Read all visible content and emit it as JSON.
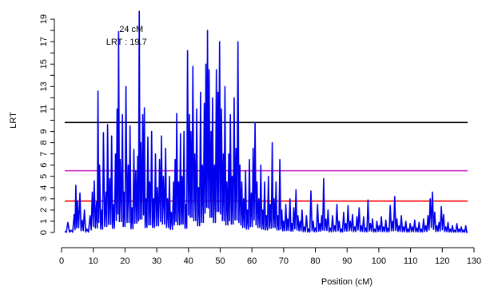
{
  "chart_data": {
    "type": "line",
    "xlabel": "Position (cM)",
    "ylabel": "LRT",
    "xlim": [
      0,
      130
    ],
    "ylim": [
      0,
      20
    ],
    "x_ticks": [
      "0",
      "10",
      "20",
      "30",
      "40",
      "50",
      "60",
      "70",
      "80",
      "90",
      "100",
      "110",
      "120",
      "130"
    ],
    "y_ticks": [
      "0",
      "1",
      "2",
      "3",
      "4",
      "5",
      "6",
      "7",
      "8",
      "9",
      "10",
      "11",
      "12",
      "13",
      "14",
      "15",
      "16",
      "17",
      "18",
      "19"
    ],
    "y_tick_labels_shown": [
      "0",
      "1",
      "2",
      "3",
      "4",
      "5",
      "6",
      "7",
      "8",
      "9",
      "11",
      "13",
      "15",
      "17",
      "19"
    ],
    "annotation": {
      "line1": "24 cM",
      "line2": "LRT : 19.7",
      "x": 24,
      "y": 19.7
    },
    "thresholds": [
      {
        "value": 9.8,
        "color": "#000000"
      },
      {
        "value": 5.5,
        "color": "#cc33cc"
      },
      {
        "value": 2.8,
        "color": "#ff0000"
      }
    ],
    "series": [
      {
        "color": "#0000ee",
        "x_start": 1,
        "x_end": 128,
        "peaks": [
          [
            1,
            0.1
          ],
          [
            2,
            0.9
          ],
          [
            3,
            0.2
          ],
          [
            4,
            1.6
          ],
          [
            4.5,
            4.2
          ],
          [
            5,
            2.8
          ],
          [
            5.8,
            3.5
          ],
          [
            6.5,
            1.1
          ],
          [
            7.2,
            2.0
          ],
          [
            8,
            0.3
          ],
          [
            9,
            1.5
          ],
          [
            9.7,
            3.6
          ],
          [
            10.3,
            4.6
          ],
          [
            11,
            2.7
          ],
          [
            11.5,
            12.6
          ],
          [
            12,
            6.0
          ],
          [
            12.7,
            2.0
          ],
          [
            13.2,
            8.9
          ],
          [
            14,
            3.6
          ],
          [
            14.5,
            9.6
          ],
          [
            15.2,
            4.8
          ],
          [
            15.8,
            8.6
          ],
          [
            16.3,
            2.5
          ],
          [
            17,
            7.0
          ],
          [
            17.5,
            11.0
          ],
          [
            18,
            17.9
          ],
          [
            18.5,
            6.5
          ],
          [
            19.2,
            10.5
          ],
          [
            19.7,
            3.6
          ],
          [
            20.3,
            13.0
          ],
          [
            21,
            6.0
          ],
          [
            21.6,
            9.5
          ],
          [
            22.2,
            2.2
          ],
          [
            22.8,
            7.4
          ],
          [
            23.4,
            5.5
          ],
          [
            24,
            6.8
          ],
          [
            24.5,
            19.7
          ],
          [
            25,
            8.0
          ],
          [
            25.6,
            10.5
          ],
          [
            26.1,
            11.1
          ],
          [
            26.6,
            3.0
          ],
          [
            27.2,
            8.5
          ],
          [
            27.8,
            4.5
          ],
          [
            28.4,
            9.0
          ],
          [
            29,
            3.0
          ],
          [
            29.6,
            7.0
          ],
          [
            30.2,
            4.0
          ],
          [
            30.9,
            6.5
          ],
          [
            31.5,
            8.6
          ],
          [
            32.1,
            5.0
          ],
          [
            32.8,
            7.5
          ],
          [
            33.4,
            3.0
          ],
          [
            34,
            5.0
          ],
          [
            34.6,
            1.8
          ],
          [
            35.3,
            4.5
          ],
          [
            35.8,
            6.5
          ],
          [
            36.3,
            10.6
          ],
          [
            36.9,
            4.5
          ],
          [
            37.5,
            8.8
          ],
          [
            38,
            5.0
          ],
          [
            38.6,
            9.0
          ],
          [
            39.2,
            2.5
          ],
          [
            39.7,
            16.2
          ],
          [
            40.3,
            10.5
          ],
          [
            40.8,
            9.0
          ],
          [
            41.4,
            14.8
          ],
          [
            42,
            7.0
          ],
          [
            42.6,
            11.0
          ],
          [
            43.2,
            4.0
          ],
          [
            43.8,
            12.5
          ],
          [
            44.4,
            6.0
          ],
          [
            45,
            11.5
          ],
          [
            45.5,
            15.0
          ],
          [
            46,
            18.0
          ],
          [
            46.5,
            14.5
          ],
          [
            47.1,
            9.0
          ],
          [
            47.6,
            12.0
          ],
          [
            48.2,
            6.0
          ],
          [
            48.8,
            14.5
          ],
          [
            49.3,
            12.5
          ],
          [
            49.8,
            17.0
          ],
          [
            50.4,
            11.0
          ],
          [
            51,
            7.0
          ],
          [
            51.5,
            13.0
          ],
          [
            52.1,
            4.5
          ],
          [
            52.7,
            7.0
          ],
          [
            53.2,
            10.5
          ],
          [
            53.8,
            5.0
          ],
          [
            54.4,
            12.0
          ],
          [
            55,
            7.5
          ],
          [
            55.6,
            17.0
          ],
          [
            56.2,
            6.0
          ],
          [
            56.8,
            4.5
          ],
          [
            57.4,
            3.0
          ],
          [
            58,
            5.5
          ],
          [
            58.6,
            2.0
          ],
          [
            59.2,
            6.5
          ],
          [
            59.8,
            3.5
          ],
          [
            60.4,
            7.5
          ],
          [
            61,
            9.8
          ],
          [
            61.6,
            4.5
          ],
          [
            62.2,
            3.0
          ],
          [
            62.8,
            6.0
          ],
          [
            63.4,
            2.0
          ],
          [
            64,
            4.5
          ],
          [
            64.6,
            1.5
          ],
          [
            65.2,
            5.0
          ],
          [
            65.8,
            2.5
          ],
          [
            66.4,
            8.0
          ],
          [
            67,
            3.0
          ],
          [
            67.6,
            4.5
          ],
          [
            68.2,
            1.5
          ],
          [
            68.8,
            6.5
          ],
          [
            69.4,
            2.0
          ],
          [
            70,
            1.0
          ],
          [
            70.7,
            2.5
          ],
          [
            71.3,
            1.2
          ],
          [
            72,
            3.0
          ],
          [
            72.6,
            0.8
          ],
          [
            73.2,
            2.2
          ],
          [
            73.9,
            3.8
          ],
          [
            74.5,
            1.5
          ],
          [
            75.2,
            1.0
          ],
          [
            75.8,
            2.0
          ],
          [
            76.5,
            0.5
          ],
          [
            77.2,
            1.5
          ],
          [
            77.9,
            0.3
          ],
          [
            78.6,
            3.7
          ],
          [
            79.3,
            1.0
          ],
          [
            80,
            0.4
          ],
          [
            80.7,
            2.5
          ],
          [
            81.4,
            0.8
          ],
          [
            82,
            1.5
          ],
          [
            82.6,
            4.8
          ],
          [
            83.3,
            1.2
          ],
          [
            84,
            2.0
          ],
          [
            84.7,
            0.4
          ],
          [
            85.4,
            1.5
          ],
          [
            86.1,
            0.6
          ],
          [
            86.8,
            2.5
          ],
          [
            87.5,
            1.0
          ],
          [
            88.2,
            0.3
          ],
          [
            88.9,
            1.8
          ],
          [
            89.6,
            0.8
          ],
          [
            90.3,
            2.4
          ],
          [
            91,
            1.0
          ],
          [
            91.7,
            1.6
          ],
          [
            92.4,
            0.5
          ],
          [
            93.1,
            1.4
          ],
          [
            93.8,
            2.2
          ],
          [
            94.5,
            0.6
          ],
          [
            95.2,
            1.4
          ],
          [
            95.9,
            0.4
          ],
          [
            96.6,
            2.9
          ],
          [
            97.3,
            0.8
          ],
          [
            98,
            1.2
          ],
          [
            98.7,
            0.3
          ],
          [
            99.4,
            1.0
          ],
          [
            100.1,
            0.6
          ],
          [
            100.8,
            1.4
          ],
          [
            101.5,
            0.5
          ],
          [
            102.2,
            1.1
          ],
          [
            102.9,
            0.4
          ],
          [
            103.6,
            2.4
          ],
          [
            104.3,
            1.0
          ],
          [
            105,
            3.2
          ],
          [
            105.7,
            1.2
          ],
          [
            106.4,
            0.6
          ],
          [
            107.1,
            1.5
          ],
          [
            107.8,
            0.5
          ],
          [
            108.5,
            1.0
          ],
          [
            109.2,
            0.3
          ],
          [
            109.9,
            0.8
          ],
          [
            110.6,
            0.5
          ],
          [
            111.3,
            1.1
          ],
          [
            112,
            0.4
          ],
          [
            112.7,
            0.9
          ],
          [
            113.4,
            0.3
          ],
          [
            114.1,
            1.2
          ],
          [
            114.8,
            0.6
          ],
          [
            115.5,
            1.5
          ],
          [
            116.2,
            3.0
          ],
          [
            116.9,
            3.6
          ],
          [
            117.6,
            1.8
          ],
          [
            118.3,
            0.6
          ],
          [
            119,
            0.9
          ],
          [
            119.7,
            2.3
          ],
          [
            120.4,
            1.6
          ],
          [
            121.1,
            0.5
          ],
          [
            121.8,
            0.9
          ],
          [
            122.5,
            0.3
          ],
          [
            123.2,
            0.6
          ],
          [
            123.9,
            0.2
          ],
          [
            124.6,
            0.8
          ],
          [
            125.3,
            0.3
          ],
          [
            126,
            0.5
          ],
          [
            126.7,
            0.2
          ],
          [
            127.4,
            0.6
          ],
          [
            128,
            0.05
          ]
        ]
      }
    ]
  }
}
